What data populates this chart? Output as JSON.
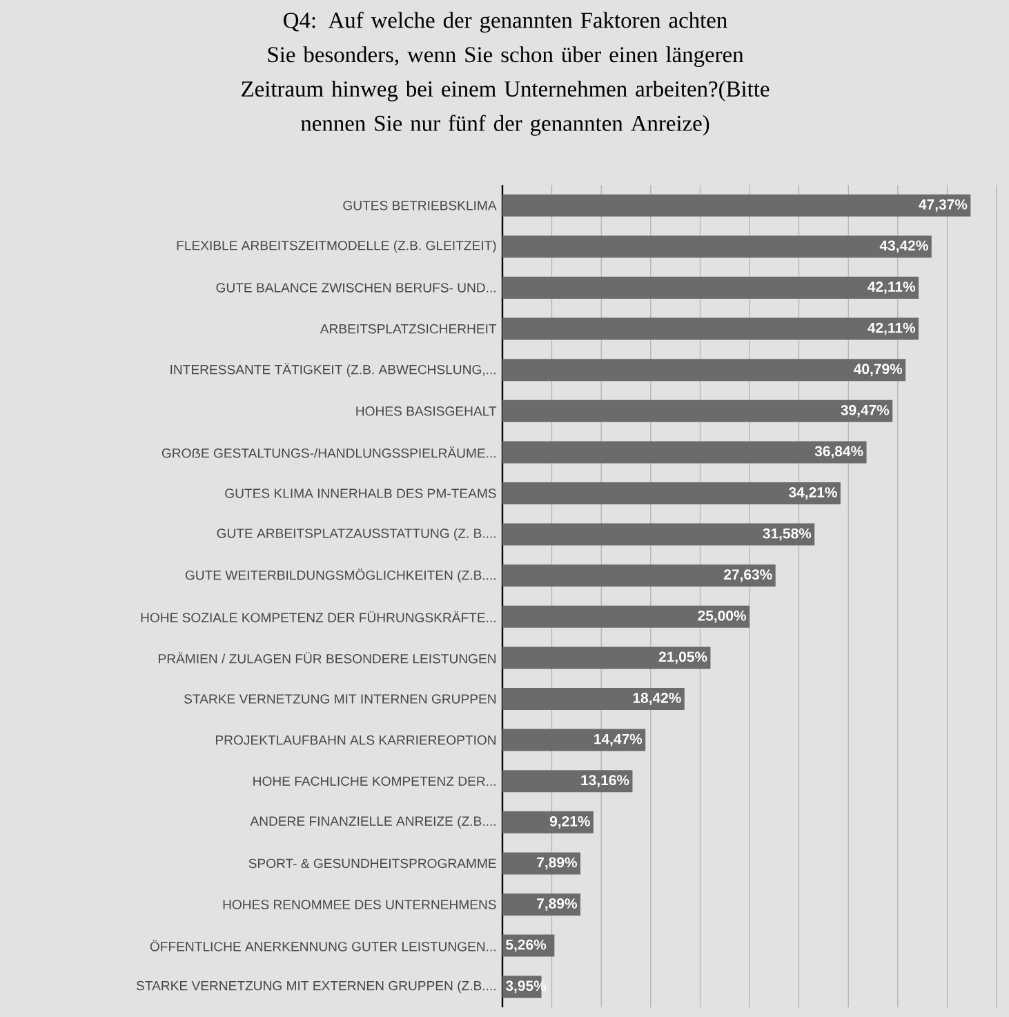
{
  "chart_data": {
    "type": "bar",
    "orientation": "horizontal",
    "title": "Q4: Auf welche der genannten Faktoren achten Sie besonders, wenn Sie schon über einen längeren Zeitraum hinweg bei einem Unternehmen arbeiten?(Bitte nennen Sie nur fünf der genannten Anreize)",
    "categories": [
      "GUTES BETRIEBSKLIMA",
      "FLEXIBLE ARBEITSZEITMODELLE (Z.B. GLEITZEIT)",
      "GUTE BALANCE ZWISCHEN BERUFS- UND...",
      "ARBEITSPLATZSICHERHEIT",
      "INTERESSANTE TÄTIGKEIT (Z.B. ABWECHSLUNG,...",
      "HOHES BASISGEHALT",
      "GROẞE GESTALTUNGS-/HANDLUNGSSPIELRÄUME...",
      "GUTES KLIMA INNERHALB DES PM-TEAMS",
      "GUTE ARBEITSPLATZAUSSTATTUNG (Z. B....",
      "GUTE WEITERBILDUNGSMÖGLICHKEITEN (Z.B....",
      "HOHE SOZIALE KOMPETENZ DER FÜHRUNGSKRÄFTE...",
      "PRÄMIEN / ZULAGEN FÜR BESONDERE LEISTUNGEN",
      "STARKE VERNETZUNG MIT INTERNEN GRUPPEN",
      "PROJEKTLAUFBAHN ALS KARRIEREOPTION",
      "HOHE FACHLICHE KOMPETENZ DER...",
      "ANDERE FINANZIELLE ANREIZE (Z.B....",
      "SPORT- & GESUNDHEITSPROGRAMME",
      "HOHES RENOMMEE DES UNTERNEHMENS",
      "ÖFFENTLICHE ANERKENNUNG GUTER LEISTUNGEN...",
      "STARKE VERNETZUNG MIT EXTERNEN GRUPPEN (Z.B...."
    ],
    "values": [
      47.37,
      43.42,
      42.11,
      42.11,
      40.79,
      39.47,
      36.84,
      34.21,
      31.58,
      27.63,
      25.0,
      21.05,
      18.42,
      14.47,
      13.16,
      9.21,
      7.89,
      7.89,
      5.26,
      3.95
    ],
    "value_labels": [
      "47,37%",
      "43,42%",
      "42,11%",
      "42,11%",
      "40,79%",
      "39,47%",
      "36,84%",
      "34,21%",
      "31,58%",
      "27,63%",
      "25,00%",
      "21,05%",
      "18,42%",
      "14,47%",
      "13,16%",
      "9,21%",
      "7,89%",
      "7,89%",
      "5,26%",
      "3,95%"
    ],
    "color": "#6b6b6b",
    "xlim": [
      0,
      50
    ],
    "xticks": [
      {
        "value": 0,
        "label": null
      },
      {
        "value": 5,
        "label": null
      },
      {
        "value": 10,
        "label": null
      },
      {
        "value": 15,
        "label": null
      },
      {
        "value": 20,
        "label": null
      },
      {
        "value": 25,
        "label": null
      },
      {
        "value": 30,
        "label": null
      },
      {
        "value": 35,
        "label": null
      },
      {
        "value": 40,
        "label": null
      },
      {
        "value": 45,
        "label": null
      },
      {
        "value": 50,
        "label": null
      }
    ],
    "grid": "x"
  }
}
